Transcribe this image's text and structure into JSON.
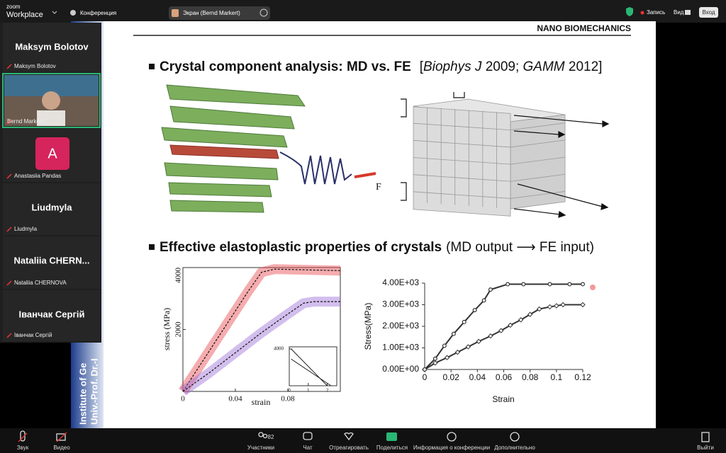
{
  "topbar": {
    "app": [
      "zoom",
      "Workplace"
    ],
    "conference": "Конференция",
    "share": "Экран (Bernd Markert)",
    "record": "Запись",
    "view": "Вид",
    "enter": "Вход"
  },
  "participants": [
    {
      "name": "Maksym Bolotov",
      "label": "Maksym Bolotov"
    },
    {
      "label": "Bernd Markert"
    },
    {
      "avatar": "A",
      "label": "Anastasiia Pandas"
    },
    {
      "name": "Liudmyla",
      "label": "Liudmyla"
    },
    {
      "name": "Nataliia CHERN...",
      "label": "Nataliia CHERNOVA"
    },
    {
      "name": "Іванчак Сергій",
      "label": "Іванчак Сергій"
    }
  ],
  "slide": {
    "header": "NANO BIOMECHANICS",
    "bullet1": {
      "title": "Crystal component analysis: MD vs. FE",
      "ref": [
        "[",
        "Biophys J",
        " 2009; ",
        "GAMM",
        " 2012]"
      ]
    },
    "force_label": "F",
    "bullet2": {
      "title": "Effective elastoplastic properties of crystals",
      "note": "(MD output ⟶ FE input)"
    },
    "side_text": [
      "Institute of Ge",
      "Univ.-Prof. Dr.-I"
    ],
    "chart_left": {
      "type": "line",
      "x_label": "strain",
      "y_label": "stress (MPa)",
      "xlim": [
        0,
        0.12
      ],
      "ylim": [
        0,
        4000
      ],
      "xticks": [
        0,
        0.04,
        0.08
      ],
      "yticks": [
        2000,
        4000
      ],
      "series": [
        {
          "color": "#e8474c",
          "x": [
            0,
            0.01,
            0.02,
            0.03,
            0.04,
            0.05,
            0.06,
            0.07,
            0.09,
            0.12
          ],
          "values": [
            0,
            650,
            1300,
            1950,
            2600,
            3250,
            3850,
            3950,
            3930,
            3900
          ]
        },
        {
          "color": "#9b6fd6",
          "x": [
            0,
            0.02,
            0.04,
            0.06,
            0.08,
            0.092,
            0.1,
            0.12
          ],
          "values": [
            0,
            600,
            1250,
            1900,
            2500,
            2850,
            2900,
            2900
          ]
        }
      ],
      "inset": {
        "type": "line",
        "xlim": [
          0,
          2.5
        ],
        "ylim": [
          0,
          4000
        ],
        "xticks": [
          0,
          1,
          2
        ],
        "yticks": [
          4000
        ],
        "series": [
          {
            "color": "#222222",
            "x": [
              0.1,
              2.0
            ],
            "values": [
              4000,
              0
            ]
          },
          {
            "color": "#222222",
            "x": [
              0.1,
              2.2
            ],
            "values": [
              2900,
              0
            ]
          }
        ]
      }
    },
    "chart_right": {
      "type": "line",
      "x_label": "Strain",
      "y_label": "Stress(MPa)",
      "xlim": [
        0,
        0.12
      ],
      "ylim": [
        0,
        4000
      ],
      "xticks": [
        0,
        0.02,
        0.04,
        0.06,
        0.08,
        0.1,
        0.12
      ],
      "yticks": [
        {
          "value": 0,
          "label": "0.00E+00"
        },
        {
          "value": 1000,
          "label": "1.00E+03"
        },
        {
          "value": 2000,
          "label": "2.00E+03"
        },
        {
          "value": 3000,
          "label": "3.00E+03"
        },
        {
          "value": 4000,
          "label": "4.00E+03"
        }
      ],
      "series": [
        {
          "color": "#333333",
          "x": [
            0,
            0.008,
            0.015,
            0.022,
            0.03,
            0.038,
            0.045,
            0.05,
            0.063,
            0.075,
            0.095,
            0.11,
            0.12
          ],
          "values": [
            0,
            500,
            1100,
            1650,
            2200,
            2750,
            3200,
            3700,
            3950,
            3950,
            3950,
            3950,
            3950
          ]
        },
        {
          "color": "#333333",
          "x": [
            0,
            0.008,
            0.017,
            0.025,
            0.033,
            0.041,
            0.05,
            0.058,
            0.065,
            0.073,
            0.08,
            0.087,
            0.095,
            0.1,
            0.105,
            0.12
          ],
          "values": [
            0,
            300,
            550,
            800,
            1050,
            1300,
            1550,
            1800,
            2050,
            2300,
            2550,
            2800,
            2900,
            2950,
            3000,
            3000
          ]
        }
      ]
    }
  },
  "toolbar": {
    "audio": "Звук",
    "video": "Видео",
    "participants": "Участники",
    "participants_count": 82,
    "chat": "Чат",
    "react": "Отреагировать",
    "share": "Поделиться",
    "info": "Информация о конференции",
    "more": "Дополнительно",
    "leave": "Выйти"
  }
}
